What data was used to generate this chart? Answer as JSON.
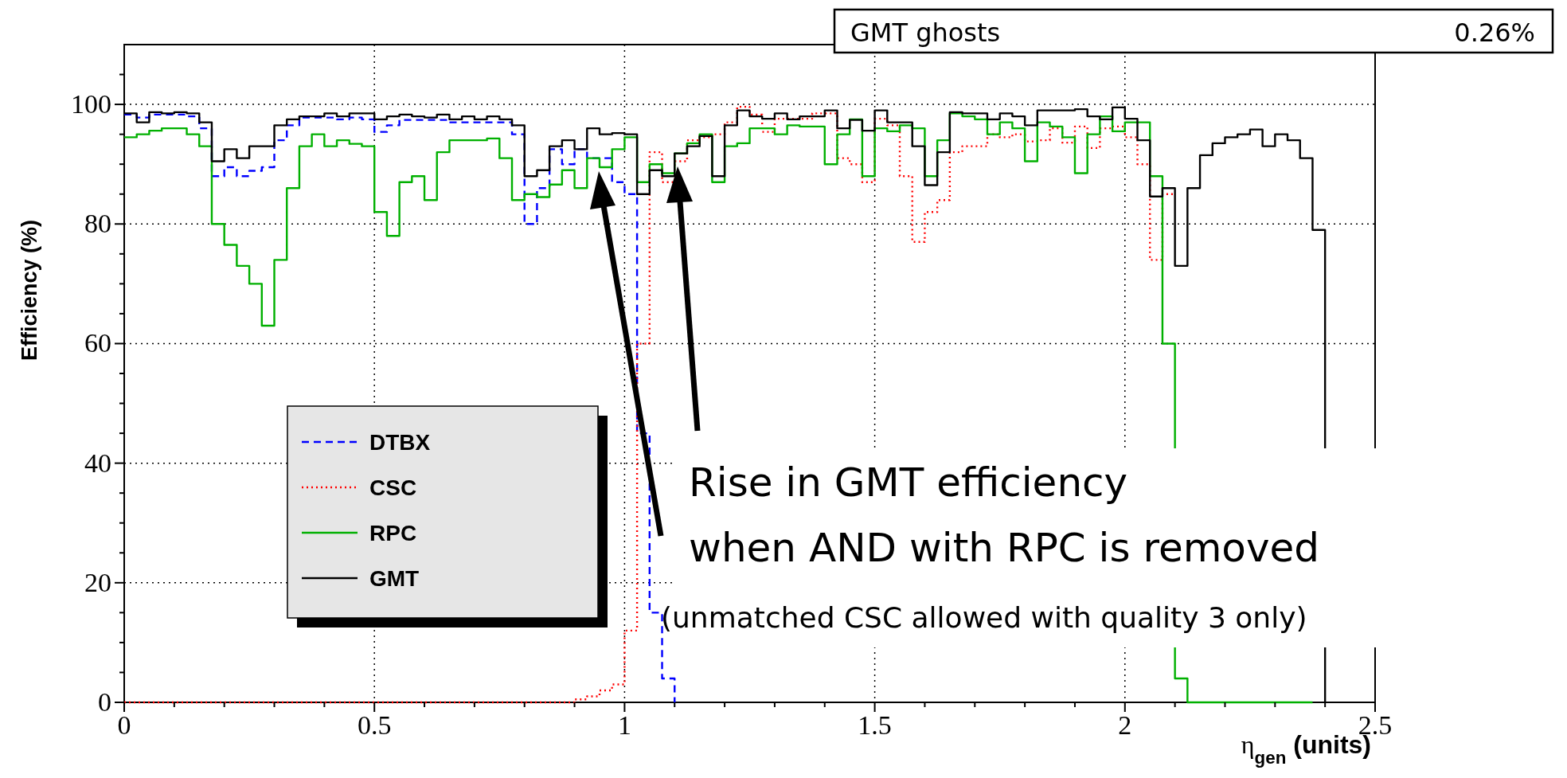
{
  "chart_data": {
    "type": "step",
    "ylabel": "Efficiency (%)",
    "xlabel": "η$_{gen}$ (units)",
    "x": [
      0,
      0.025,
      0.05,
      0.075,
      0.1,
      0.125,
      0.15,
      0.175,
      0.2,
      0.225,
      0.25,
      0.275,
      0.3,
      0.325,
      0.35,
      0.375,
      0.4,
      0.425,
      0.45,
      0.475,
      0.5,
      0.525,
      0.55,
      0.575,
      0.6,
      0.625,
      0.65,
      0.675,
      0.7,
      0.725,
      0.75,
      0.775,
      0.8,
      0.825,
      0.85,
      0.875,
      0.9,
      0.925,
      0.95,
      0.975,
      1,
      1.025,
      1.05,
      1.075,
      1.1,
      1.125,
      1.15,
      1.175,
      1.2,
      1.225,
      1.25,
      1.275,
      1.3,
      1.325,
      1.35,
      1.375,
      1.4,
      1.425,
      1.45,
      1.475,
      1.5,
      1.525,
      1.55,
      1.575,
      1.6,
      1.625,
      1.65,
      1.675,
      1.7,
      1.725,
      1.75,
      1.775,
      1.8,
      1.825,
      1.85,
      1.875,
      1.9,
      1.925,
      1.95,
      1.975,
      2,
      2.025,
      2.05,
      2.075,
      2.1,
      2.125,
      2.15,
      2.175,
      2.2,
      2.225,
      2.25,
      2.275,
      2.3,
      2.325,
      2.35,
      2.375,
      2.4
    ],
    "series": [
      {
        "name": "DTBX",
        "color": "#0000ff",
        "line_style": "dashed",
        "values": [
          98.3,
          97.8,
          98.3,
          98.3,
          98.3,
          98,
          96,
          88,
          89.5,
          88,
          88.9,
          89.5,
          94,
          96.5,
          97.8,
          97.8,
          97.8,
          97.5,
          97.8,
          97.5,
          95.4,
          96.5,
          97.4,
          97.4,
          97.4,
          97.4,
          97,
          97,
          97,
          97,
          97,
          95,
          80,
          86,
          92.5,
          90,
          92.5,
          91,
          91,
          87,
          85,
          45,
          15,
          4,
          0,
          null,
          null,
          null,
          null,
          null,
          null,
          null,
          null,
          null,
          null,
          null,
          null,
          null,
          null,
          null,
          null,
          null,
          null,
          null,
          null,
          null,
          null,
          null,
          null,
          null,
          null,
          null,
          null,
          null,
          null,
          null,
          null,
          null,
          null,
          null,
          null,
          null,
          null,
          null,
          null,
          null,
          null,
          null,
          null,
          null,
          null,
          null,
          null,
          null,
          null,
          null,
          null
        ]
      },
      {
        "name": "CSC",
        "color": "#ff0000",
        "line_style": "dotted",
        "values": [
          0,
          0,
          0,
          0,
          0,
          0,
          0,
          0,
          0,
          0,
          0,
          0,
          0,
          0,
          0,
          0,
          0,
          0,
          0,
          0,
          0,
          0,
          0,
          0,
          0,
          0,
          0,
          0,
          0,
          0,
          0,
          0,
          0,
          0,
          0,
          0,
          0.5,
          1,
          2,
          3,
          12,
          60,
          92,
          87,
          90.5,
          94,
          94.5,
          95,
          97,
          99.6,
          98.3,
          95.4,
          97.6,
          97.6,
          97.6,
          98.5,
          98.5,
          91,
          90,
          87,
          97.6,
          96.5,
          88,
          77,
          82,
          84,
          92,
          93,
          93,
          95,
          94.5,
          95,
          93.8,
          94,
          96,
          93.6,
          96.3,
          92.7,
          96,
          96.3,
          94.5,
          90,
          74,
          85,
          85,
          null,
          null,
          null,
          null,
          null,
          null,
          null,
          null,
          null,
          null,
          null,
          null
        ]
      },
      {
        "name": "RPC",
        "color": "#00b000",
        "line_style": "solid",
        "values": [
          94.5,
          95,
          95.6,
          96,
          96,
          95,
          93,
          80,
          76.5,
          73,
          70,
          63,
          74,
          86,
          93,
          95,
          93,
          94,
          93.4,
          93,
          82,
          78,
          87,
          88,
          84,
          92,
          94,
          94,
          94,
          94.3,
          91,
          84,
          85,
          84.5,
          86.6,
          89,
          86,
          91,
          89.5,
          92.5,
          94.5,
          87,
          90,
          88.5,
          91.8,
          93.5,
          95,
          87,
          93,
          93.5,
          96,
          96,
          95,
          96.5,
          96.3,
          96.3,
          90,
          95,
          97.5,
          88,
          96,
          95.5,
          96.5,
          96,
          88,
          94,
          98.5,
          98,
          97.5,
          95,
          97,
          96,
          90.5,
          97,
          96.3,
          94.5,
          88.5,
          95,
          98,
          95.5,
          97,
          97,
          88,
          60,
          4,
          0,
          0,
          0,
          0,
          0,
          0,
          0,
          0,
          0,
          0,
          0,
          null
        ]
      },
      {
        "name": "GMT",
        "color": "#000000",
        "line_style": "solid",
        "values": [
          98.5,
          97,
          98.7,
          98.5,
          98.7,
          98.5,
          97,
          90.5,
          92.5,
          91,
          93,
          93,
          96.5,
          97.5,
          98,
          98,
          98.5,
          98,
          98.5,
          98.5,
          97.5,
          98,
          98.3,
          98,
          97.8,
          98.3,
          97.5,
          98,
          97.5,
          98,
          97.5,
          96.5,
          88,
          89,
          93,
          94,
          92.5,
          96,
          95,
          95.2,
          95,
          85,
          89,
          88,
          91.8,
          93,
          94.7,
          88,
          96.5,
          99,
          98,
          97.6,
          98.5,
          97.5,
          98,
          98,
          99,
          96,
          97.4,
          95.6,
          99,
          97,
          97,
          93,
          86.5,
          92,
          98.7,
          98.5,
          98.5,
          97.5,
          98.5,
          98,
          96.5,
          99,
          99,
          99,
          99.2,
          98,
          97.5,
          99.5,
          97.6,
          94,
          84.6,
          86,
          73,
          86,
          91.5,
          93.5,
          94.5,
          95,
          95.8,
          93,
          95,
          94,
          91,
          79,
          0
        ]
      }
    ],
    "xlim": [
      0,
      2.5
    ],
    "ylim": [
      0,
      110
    ],
    "xticks": [
      0,
      {
        "value": 0.1,
        "label": null
      },
      {
        "value": 0.2,
        "label": null
      },
      {
        "value": 0.3,
        "label": null
      },
      {
        "value": 0.4,
        "label": null
      },
      0.5,
      {
        "value": 0.6,
        "label": null
      },
      {
        "value": 0.7,
        "label": null
      },
      {
        "value": 0.8,
        "label": null
      },
      {
        "value": 0.9,
        "label": null
      },
      1,
      {
        "value": 1.1,
        "label": null
      },
      {
        "value": 1.2,
        "label": null
      },
      {
        "value": 1.3,
        "label": null
      },
      {
        "value": 1.4,
        "label": null
      },
      1.5,
      {
        "value": 1.6,
        "label": null
      },
      {
        "value": 1.7,
        "label": null
      },
      {
        "value": 1.8,
        "label": null
      },
      {
        "value": 1.9,
        "label": null
      },
      2,
      {
        "value": 2.1,
        "label": null
      },
      {
        "value": 2.2,
        "label": null
      },
      {
        "value": 2.3,
        "label": null
      },
      {
        "value": 2.4,
        "label": null
      },
      2.5
    ],
    "yticks": [
      0,
      {
        "value": 5,
        "label": null
      },
      {
        "value": 10,
        "label": null
      },
      {
        "value": 15,
        "label": null
      },
      20,
      {
        "value": 25,
        "label": null
      },
      {
        "value": 30,
        "label": null
      },
      {
        "value": 35,
        "label": null
      },
      40,
      {
        "value": 45,
        "label": null
      },
      {
        "value": 50,
        "label": null
      },
      {
        "value": 55,
        "label": null
      },
      60,
      {
        "value": 65,
        "label": null
      },
      {
        "value": 70,
        "label": null
      },
      {
        "value": 75,
        "label": null
      },
      80,
      {
        "value": 85,
        "label": null
      },
      {
        "value": 90,
        "label": null
      },
      {
        "value": 95,
        "label": null
      },
      100,
      {
        "value": 105,
        "label": null
      }
    ],
    "grid": true,
    "legend": "bottom left",
    "annotations": [
      "Rise in GMT efficiency",
      "when AND with RPC is removed",
      "(unmatched CSC allowed with quality 3 only)",
      "GMT ghosts",
      "0.26%"
    ]
  }
}
